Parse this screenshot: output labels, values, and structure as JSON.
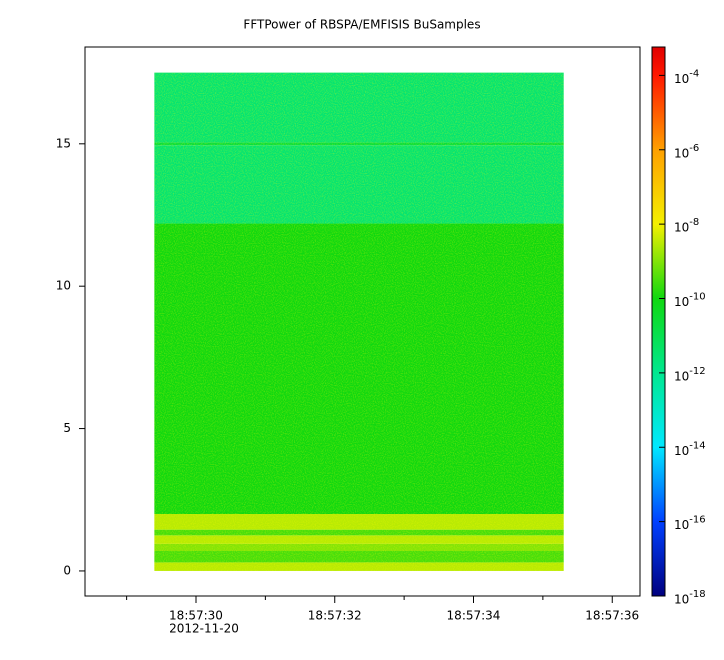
{
  "chart_data": {
    "type": "spectrogram",
    "title": "FFTPower of RBSPA/EMFISIS  BuSamples",
    "time_range": [
      "18:57:29.4",
      "18:57:35.3"
    ],
    "frequency_edges": [
      0,
      0.3,
      0.7,
      0.95,
      1.25,
      1.45,
      2.0,
      12.2,
      14.95,
      15.05,
      17.5
    ],
    "power": [
      3e-09,
      3e-10,
      1e-09,
      3e-09,
      3e-10,
      3e-09,
      1e-10,
      3e-12,
      2e-11,
      3e-12
    ],
    "xlim": [
      "18:57:28.4",
      "18:57:36.4"
    ],
    "xticks": [
      "18:57:30",
      "18:57:32",
      "18:57:34",
      "18:57:36"
    ],
    "xminorticks": [
      "18:57:29",
      "18:57:31",
      "18:57:33",
      "18:57:35"
    ],
    "x_date_label": "2012-11-20",
    "ylim": [
      -0.88,
      18.4
    ],
    "yticks": [
      0,
      5,
      10,
      15
    ],
    "zlim": [
      1e-18,
      0.00058
    ],
    "zscale": "log",
    "zticks": [
      {
        "value": 0.0001,
        "label": "10-4"
      },
      {
        "value": 1e-06,
        "label": "10-6"
      },
      {
        "value": 1e-08,
        "label": "10-8"
      },
      {
        "value": 1e-10,
        "label": "10-10"
      },
      {
        "value": 1e-12,
        "label": "10-12"
      },
      {
        "value": 1e-14,
        "label": "10-14"
      },
      {
        "value": 1e-16,
        "label": "10-16"
      },
      {
        "value": 1e-18,
        "label": "10-18"
      }
    ],
    "colorscale": [
      {
        "value": 1e-18,
        "color": "#00007f"
      },
      {
        "value": 1e-16,
        "color": "#0040ff"
      },
      {
        "value": 1e-14,
        "color": "#00e8ff"
      },
      {
        "value": 1e-12,
        "color": "#00e890"
      },
      {
        "value": 1e-10,
        "color": "#10d810"
      },
      {
        "value": 1e-08,
        "color": "#f4f000"
      },
      {
        "value": 1e-06,
        "color": "#ffa000"
      },
      {
        "value": 0.0001,
        "color": "#ff1800"
      },
      {
        "value": 0.00058,
        "color": "#e00000"
      }
    ]
  }
}
